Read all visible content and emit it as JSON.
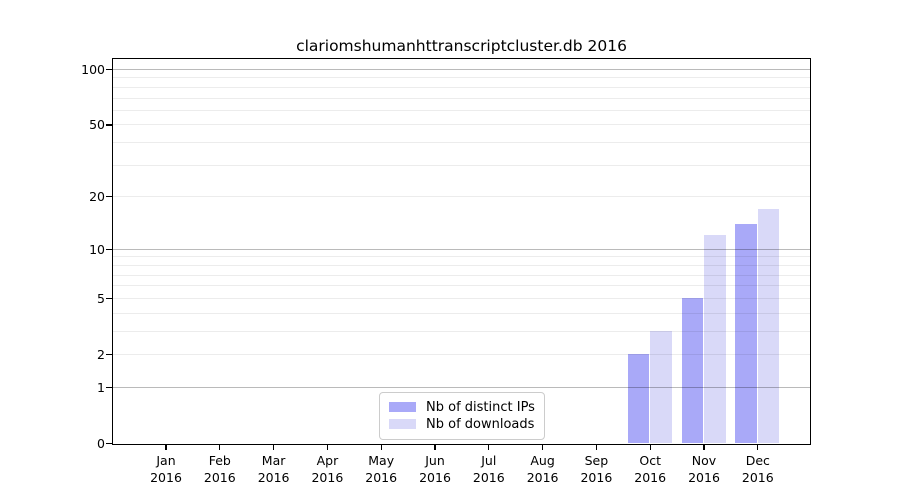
{
  "title": "clariomshumanhttranscriptcluster.db 2016",
  "colors": {
    "bar_distinct_ips": "#a9a9f8",
    "bar_downloads": "#d9d9f8",
    "spine": "#000000",
    "legend_border": "#cccccc"
  },
  "chart_data": {
    "type": "bar",
    "title": "clariomshumanhttranscriptcluster.db 2016",
    "categories": [
      "Jan 2016",
      "Feb 2016",
      "Mar 2016",
      "Apr 2016",
      "May 2016",
      "Jun 2016",
      "Jul 2016",
      "Aug 2016",
      "Sep 2016",
      "Oct 2016",
      "Nov 2016",
      "Dec 2016"
    ],
    "x_months": [
      "Jan",
      "Feb",
      "Mar",
      "Apr",
      "May",
      "Jun",
      "Jul",
      "Aug",
      "Sep",
      "Oct",
      "Nov",
      "Dec"
    ],
    "x_year": "2016",
    "series": [
      {
        "name": "Nb of distinct IPs",
        "color": "#a9a9f8",
        "values": [
          0,
          0,
          0,
          0,
          0,
          0,
          0,
          0,
          0,
          2,
          5,
          14
        ]
      },
      {
        "name": "Nb of downloads",
        "color": "#d9d9f8",
        "values": [
          0,
          0,
          0,
          0,
          0,
          0,
          0,
          0,
          0,
          3,
          12,
          17
        ]
      }
    ],
    "y_axis": {
      "scale": "log1p",
      "tick_values": [
        100,
        50,
        20,
        10,
        5,
        2,
        1,
        0
      ],
      "tick_labels": [
        "100",
        "50",
        "20",
        "10",
        "5",
        "2",
        "1",
        "0"
      ],
      "major_gridlines": [
        1,
        10,
        100
      ],
      "minor_gridlines": [
        2,
        3,
        4,
        5,
        6,
        7,
        8,
        9,
        20,
        30,
        40,
        50,
        60,
        70,
        80,
        90
      ],
      "ylim": [
        0,
        113
      ]
    },
    "legend": {
      "position": "bottom-center",
      "entries": [
        "Nb of distinct IPs",
        "Nb of downloads"
      ]
    },
    "grid": true
  }
}
